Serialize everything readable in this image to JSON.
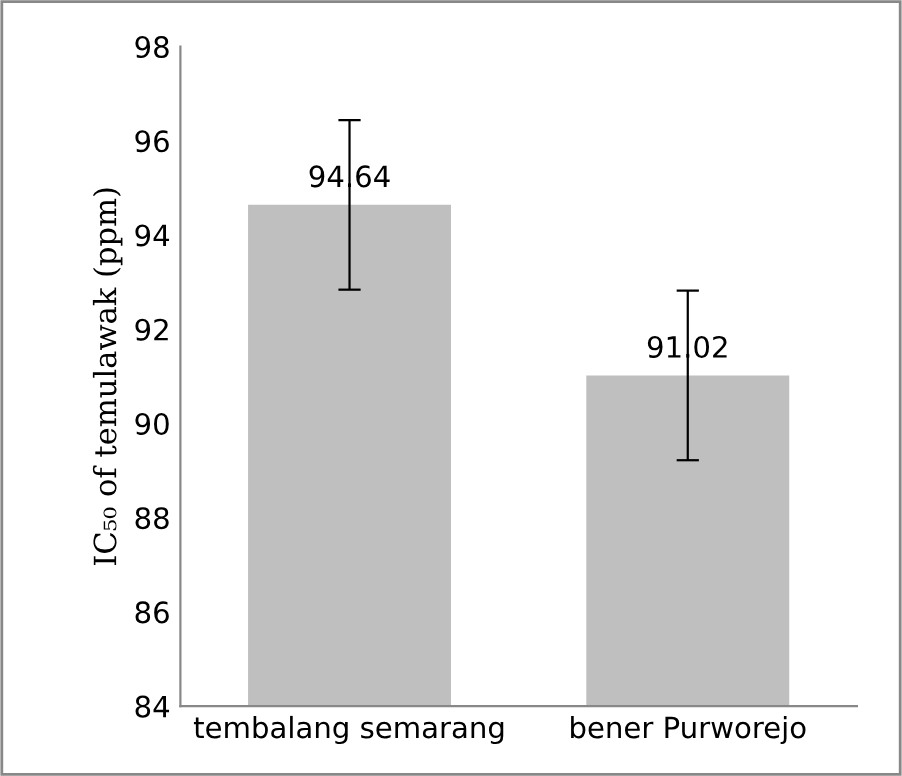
{
  "chart_data": {
    "type": "bar",
    "ylabel": "IC₅₀ of temulawak (ppm)",
    "categories": [
      "tembalang semarang",
      "bener Purworejo"
    ],
    "values": [
      94.64,
      91.02
    ],
    "errors": [
      1.8,
      1.8
    ],
    "color": "#bfbfbf",
    "ylim": [
      84,
      98
    ],
    "yticks": [
      84,
      86,
      88,
      90,
      92,
      94,
      96,
      98
    ],
    "grid": false,
    "data_labels": true
  }
}
